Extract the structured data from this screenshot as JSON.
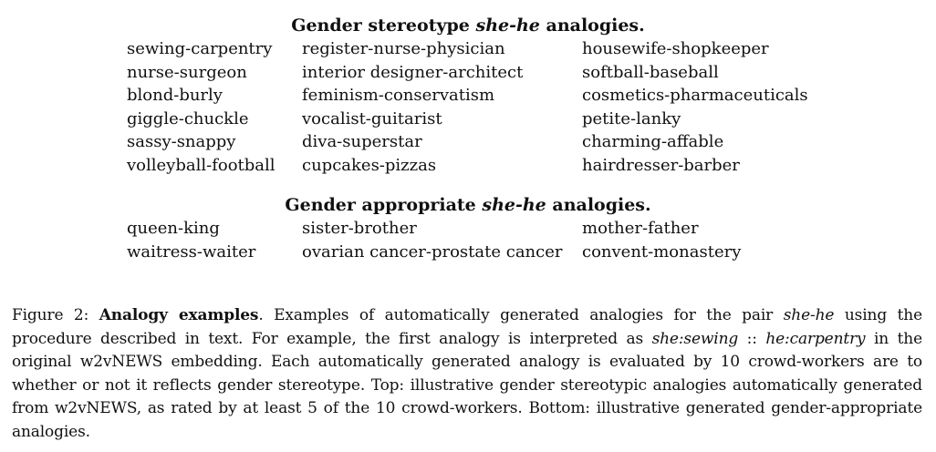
{
  "stereotype_section": {
    "title_prefix": "Gender stereotype ",
    "title_emph": "she-he",
    "title_suffix": " analogies.",
    "rows": [
      [
        "sewing-carpentry",
        "register-nurse-physician",
        "housewife-shopkeeper"
      ],
      [
        "nurse-surgeon",
        "interior designer-architect",
        "softball-baseball"
      ],
      [
        "blond-burly",
        "feminism-conservatism",
        "cosmetics-pharmaceuticals"
      ],
      [
        "giggle-chuckle",
        "vocalist-guitarist",
        "petite-lanky"
      ],
      [
        "sassy-snappy",
        "diva-superstar",
        "charming-affable"
      ],
      [
        "volleyball-football",
        "cupcakes-pizzas",
        "hairdresser-barber"
      ]
    ]
  },
  "appropriate_section": {
    "title_prefix": "Gender appropriate ",
    "title_emph": "she-he",
    "title_suffix": " analogies.",
    "rows": [
      [
        "queen-king",
        "sister-brother",
        "mother-father"
      ],
      [
        "waitress-waiter",
        "ovarian cancer-prostate cancer",
        "convent-monastery"
      ]
    ]
  },
  "caption": {
    "label": "Figure 2: ",
    "bold_title": "Analogy examples",
    "t1": ". Examples of automatically generated analogies for the pair ",
    "e1": "she-he",
    "t2": " using the procedure described in text. For example, the first analogy is interpreted as ",
    "e2": "she:sewing",
    "t3": " :: ",
    "e3": "he:carpentry",
    "t4": " in the original w2vNEWS embedding. Each automatically generated analogy is evaluated by 10 crowd-workers are to whether or not it reflects gender stereotype. Top: illustrative gender stereotypic analogies automatically generated from w2vNEWS, as rated by at least 5 of the 10 crowd-workers. Bottom: illustrative generated gender-appropriate analogies."
  }
}
